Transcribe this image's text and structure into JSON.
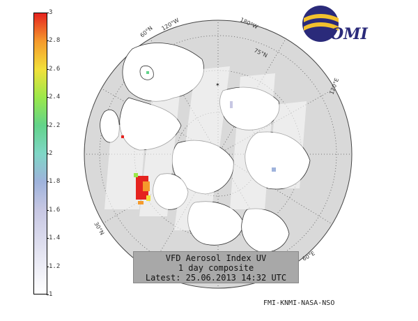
{
  "colorbar": {
    "ticks": [
      "3",
      "2.8",
      "2.6",
      "2.4",
      "2.2",
      "2",
      "1.8",
      "1.6",
      "1.4",
      "1.2",
      "1"
    ],
    "min": 1,
    "max": 3
  },
  "map": {
    "graticule_labels": [
      "60°N",
      "120°W",
      "180°W",
      "75°N",
      "120°E",
      "60°E",
      "30°N"
    ]
  },
  "logo": {
    "text": "OMI"
  },
  "title_box": {
    "line1": "VFD Aerosol Index UV",
    "line2": "1 day composite",
    "line3": "Latest: 25.06.2013 14:32 UTC"
  },
  "credit": "FMI-KNMI-NASA-NSO",
  "colors": {
    "globe": "#d9d9d9",
    "land": "#ffffff",
    "high_index": "#e5231f"
  }
}
